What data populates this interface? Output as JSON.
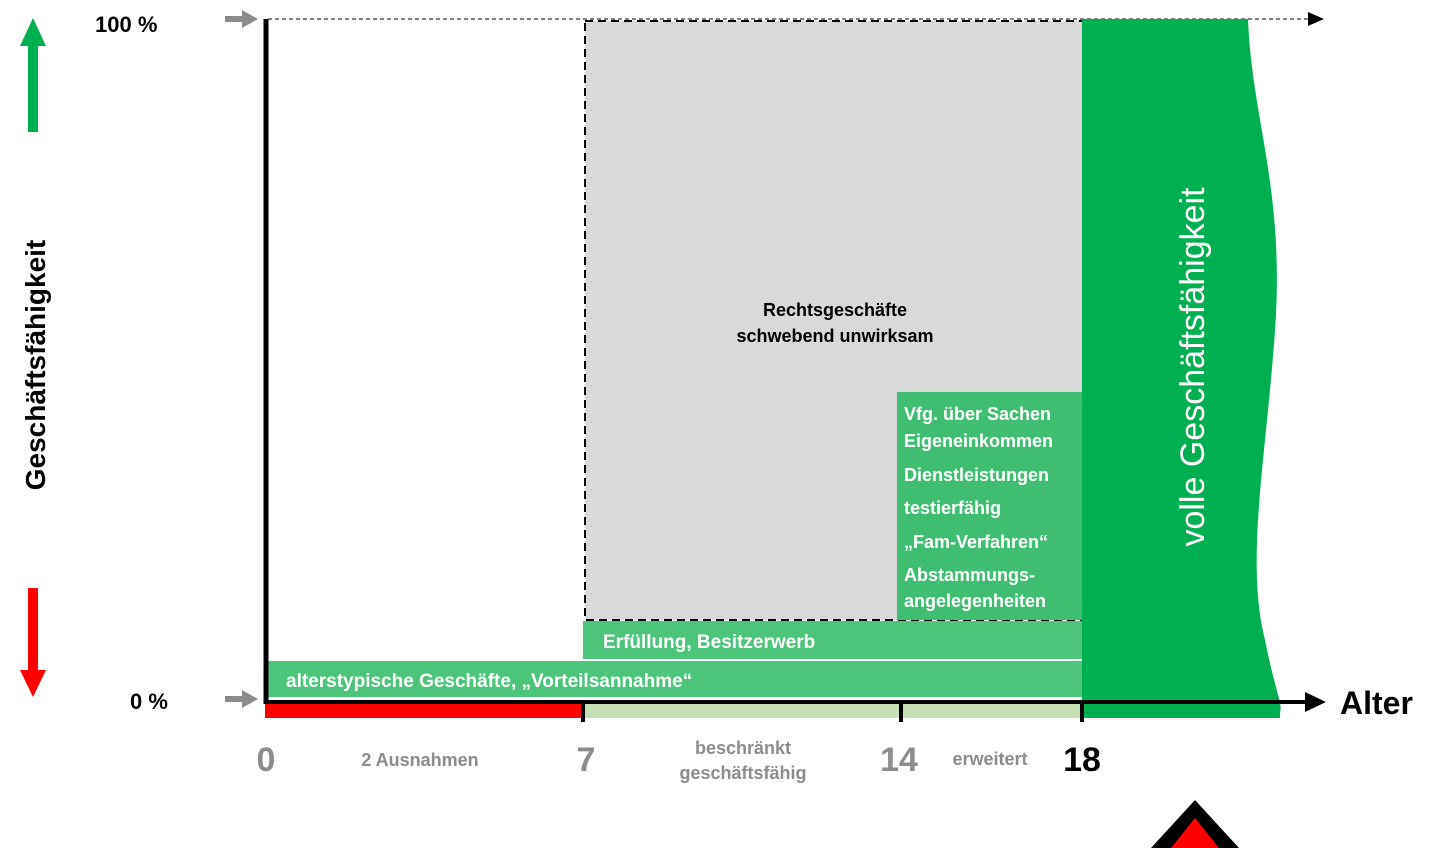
{
  "axes": {
    "y_label": "Geschäftsfähigkeit",
    "x_label": "Alter",
    "y_top": "100 %",
    "y_bottom": "0 %"
  },
  "ages": [
    "0",
    "7",
    "14",
    "18"
  ],
  "phase_labels": {
    "p0_7": "2 Ausnahmen",
    "p7_14_line1": "beschränkt",
    "p7_14_line2": "geschäftsfähig",
    "p14_18": "erweitert"
  },
  "gray_box": {
    "line1": "Rechtsgeschäfte",
    "line2": "schwebend unwirksam"
  },
  "bars": {
    "bar1": "alterstypische Geschäfte, „Vorteilsannahme“",
    "bar2": "Erfüllung, Besitzerwerb"
  },
  "list_items": [
    "Vfg. über Sachen",
    "Eigeneinkommen",
    "Dienstleistungen",
    "testierfähig",
    "„Fam-Verfahren“",
    "Abstammungs-",
    "angelegenheiten"
  ],
  "full_capacity": "volle Geschäftsfähigkeit",
  "colors": {
    "green_dark": "#00b050",
    "green_mid": "#3fbe72",
    "green_light": "#4cc47a",
    "gray_box": "#d9d9d9",
    "red": "#ff0000",
    "light_green_axis": "#c5e0b4",
    "arrow_gray": "#8c8c8c",
    "tick_gray": "#8c8c8c"
  }
}
